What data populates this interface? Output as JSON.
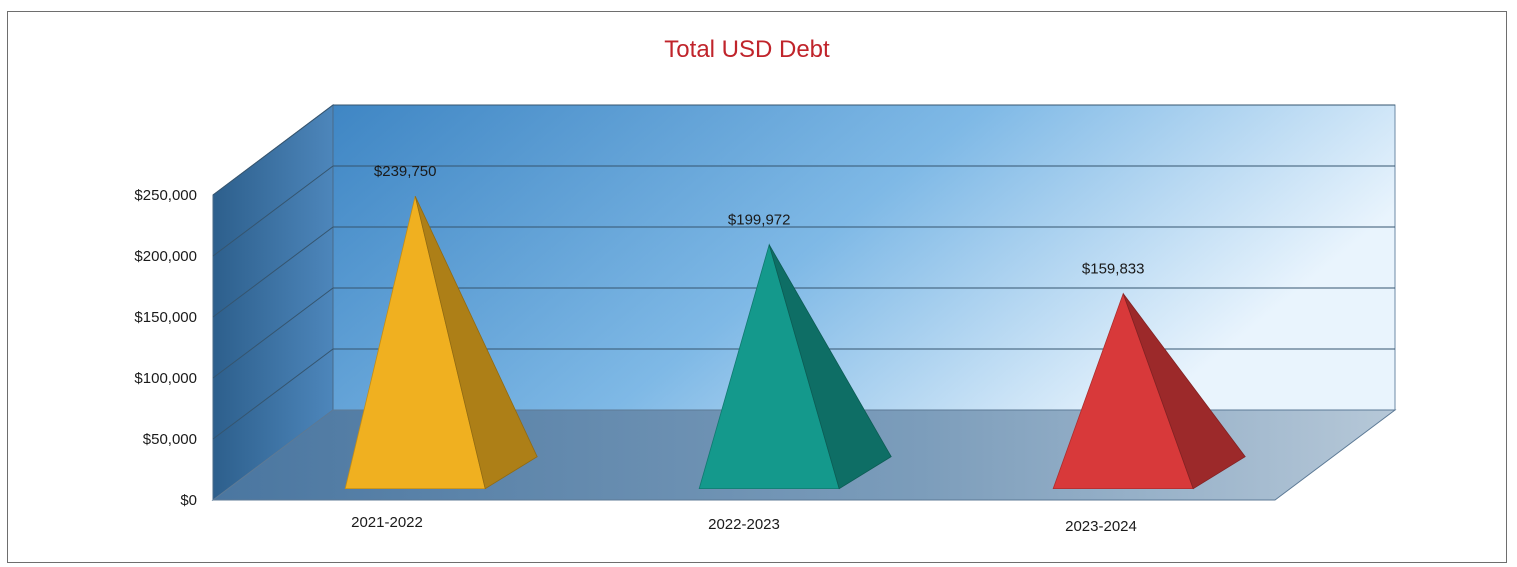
{
  "chart_data": {
    "type": "bar",
    "style": "3d-pyramid",
    "title": "Total USD Debt",
    "xlabel": "",
    "ylabel": "",
    "categories": [
      "2021-2022",
      "2022-2023",
      "2023-2024"
    ],
    "values": [
      239750,
      199972,
      159833
    ],
    "data_labels": [
      "$239,750",
      "$199,972",
      "$159,833"
    ],
    "ylim": [
      0,
      250000
    ],
    "y_ticks": [
      0,
      50000,
      100000,
      150000,
      200000,
      250000
    ],
    "y_tick_labels": [
      "$0",
      "$50,000",
      "$100,000",
      "$150,000",
      "$200,000",
      "$250,000"
    ],
    "grid": true,
    "legend": "none",
    "colors": {
      "title": "#c0242b",
      "bars": [
        "#f0b020",
        "#14998c",
        "#d8393a"
      ],
      "back_wall": "#4f95cf",
      "floor": "#5f86ab"
    }
  }
}
